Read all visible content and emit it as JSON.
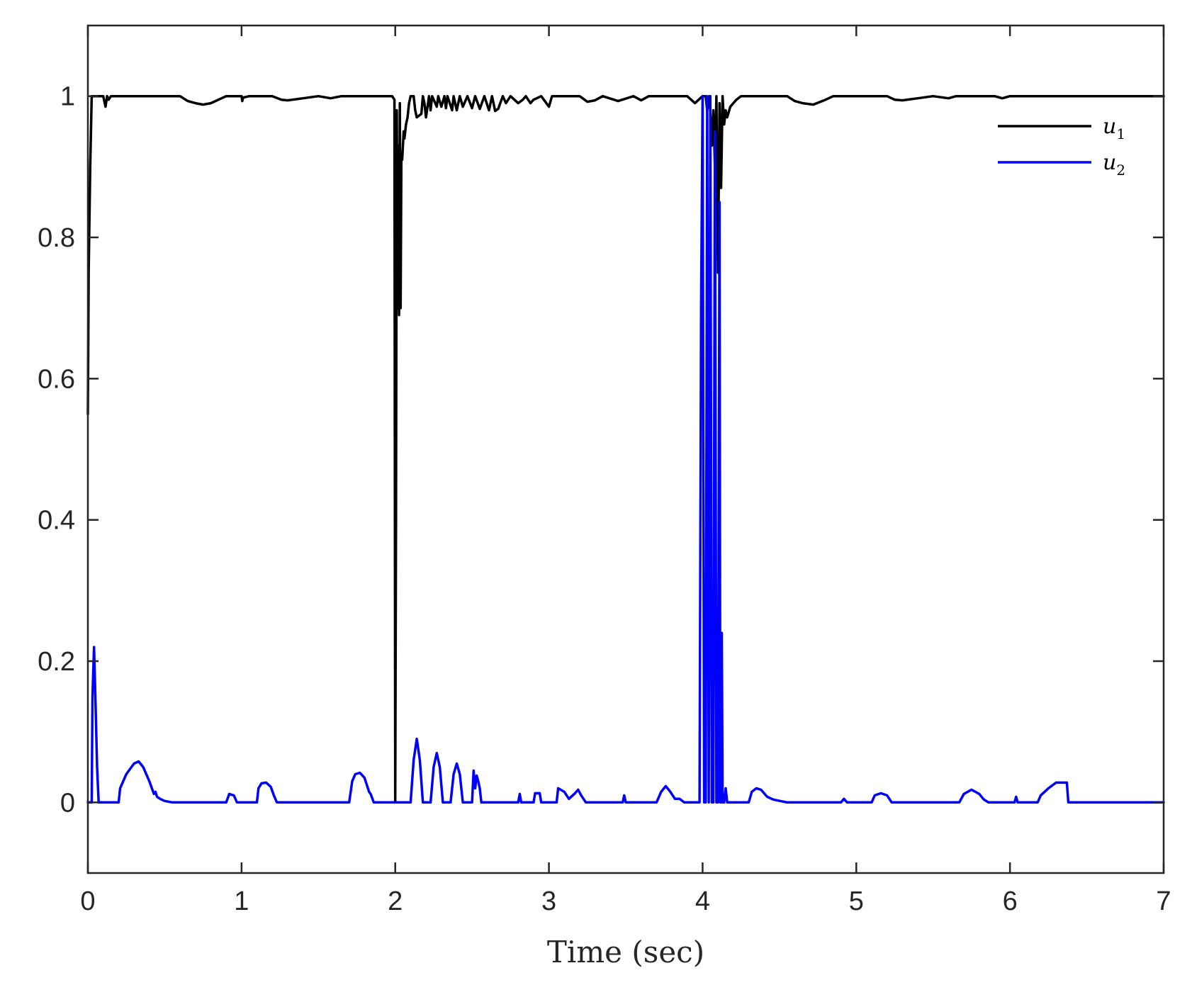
{
  "chart_data": {
    "type": "line",
    "title": "",
    "xlabel": "Time (sec)",
    "ylabel": "",
    "xlim": [
      0,
      7
    ],
    "ylim": [
      -0.1,
      1.1
    ],
    "xticks": [
      "0",
      "1",
      "2",
      "3",
      "4",
      "5",
      "6",
      "7"
    ],
    "yticks": [
      "0",
      "0.2",
      "0.4",
      "0.6",
      "0.8",
      "1"
    ],
    "grid": false,
    "legend_position": "top-right",
    "series": [
      {
        "name": "u1",
        "legend_base": "u",
        "legend_sub": "1",
        "color": "#000000",
        "x": [
          0,
          0.005,
          0.015,
          0.025,
          0.04,
          0.06,
          0.1,
          0.115,
          0.125,
          0.135,
          0.15,
          0.2,
          0.3,
          0.45,
          0.6,
          0.65,
          0.7,
          0.75,
          0.8,
          0.85,
          0.9,
          0.95,
          1.0,
          1.005,
          1.01,
          1.05,
          1.2,
          1.26,
          1.3,
          1.4,
          1.5,
          1.58,
          1.65,
          1.7,
          1.8,
          1.9,
          1.98,
          1.995,
          2.0,
          2.005,
          2.01,
          2.015,
          2.02,
          2.025,
          2.03,
          2.035,
          2.04,
          2.045,
          2.055,
          2.06,
          2.07,
          2.08,
          2.09,
          2.1,
          2.12,
          2.13,
          2.14,
          2.17,
          2.18,
          2.19,
          2.2,
          2.22,
          2.23,
          2.24,
          2.27,
          2.28,
          2.3,
          2.32,
          2.33,
          2.34,
          2.37,
          2.38,
          2.4,
          2.42,
          2.44,
          2.47,
          2.5,
          2.52,
          2.55,
          2.58,
          2.61,
          2.63,
          2.65,
          2.67,
          2.7,
          2.72,
          2.75,
          2.8,
          2.83,
          2.85,
          2.88,
          2.9,
          2.95,
          3.0,
          3.02,
          3.05,
          3.2,
          3.25,
          3.3,
          3.35,
          3.45,
          3.55,
          3.6,
          3.65,
          3.9,
          3.95,
          4.0,
          4.02,
          4.03,
          4.045,
          4.06,
          4.07,
          4.08,
          4.09,
          4.1,
          4.11,
          4.12,
          4.13,
          4.14,
          4.15,
          4.16,
          4.18,
          4.2,
          4.22,
          4.25,
          4.3,
          4.55,
          4.6,
          4.65,
          4.72,
          4.8,
          4.85,
          4.95,
          5.0,
          5.1,
          5.2,
          5.25,
          5.3,
          5.4,
          5.5,
          5.6,
          5.65,
          5.9,
          5.95,
          6.0,
          6.5,
          7.0
        ],
        "y": [
          0.55,
          0.75,
          0.9,
          1.0,
          1.0,
          1.0,
          1.0,
          0.985,
          1.0,
          0.995,
          1.0,
          1.0,
          1.0,
          1.0,
          1.0,
          0.993,
          0.99,
          0.988,
          0.99,
          0.995,
          1.0,
          1.0,
          1.0,
          0.993,
          0.998,
          1.0,
          1.0,
          0.995,
          0.994,
          0.997,
          1.0,
          0.997,
          1.0,
          1.0,
          1.0,
          1.0,
          1.0,
          0.995,
          0.0,
          0.4,
          0.98,
          0.7,
          0.93,
          0.69,
          0.99,
          0.7,
          0.92,
          0.91,
          0.95,
          0.94,
          0.96,
          0.97,
          0.99,
          1.0,
          1.0,
          0.98,
          0.97,
          0.975,
          1.0,
          0.99,
          0.97,
          1.0,
          0.98,
          1.0,
          0.985,
          1.0,
          0.985,
          1.0,
          0.983,
          1.0,
          0.98,
          1.0,
          0.98,
          1.0,
          0.985,
          1.0,
          0.983,
          1.0,
          0.982,
          1.0,
          0.98,
          1.0,
          0.979,
          0.982,
          1.0,
          0.99,
          1.0,
          0.99,
          0.995,
          1.0,
          0.99,
          0.995,
          1.0,
          0.985,
          1.0,
          1.0,
          1.0,
          0.992,
          0.994,
          1.0,
          0.993,
          1.0,
          0.994,
          1.0,
          1.0,
          0.99,
          1.0,
          1.0,
          0.98,
          1.0,
          0.93,
          0.98,
          0.9,
          1.0,
          0.75,
          0.99,
          0.87,
          1.0,
          0.96,
          0.98,
          0.97,
          0.985,
          0.99,
          0.995,
          1.0,
          1.0,
          1.0,
          0.993,
          0.99,
          0.988,
          0.995,
          1.0,
          1.0,
          1.0,
          1.0,
          1.0,
          0.995,
          0.994,
          0.997,
          1.0,
          0.997,
          1.0,
          1.0,
          0.997,
          1.0,
          1.0,
          1.0
        ]
      },
      {
        "name": "u2",
        "legend_base": "u",
        "legend_sub": "2",
        "color": "#0000ff",
        "x": [
          0,
          0.025,
          0.03,
          0.04,
          0.05,
          0.06,
          0.07,
          0.08,
          0.1,
          0.2,
          0.21,
          0.25,
          0.3,
          0.33,
          0.36,
          0.4,
          0.43,
          0.44,
          0.45,
          0.47,
          0.5,
          0.55,
          0.6,
          0.9,
          0.92,
          0.95,
          0.97,
          1.1,
          1.11,
          1.13,
          1.16,
          1.19,
          1.21,
          1.23,
          1.7,
          1.72,
          1.74,
          1.77,
          1.8,
          1.83,
          1.84,
          1.86,
          2.1,
          2.12,
          2.14,
          2.16,
          2.18,
          2.23,
          2.25,
          2.27,
          2.29,
          2.31,
          2.36,
          2.38,
          2.4,
          2.42,
          2.44,
          2.5,
          2.51,
          2.52,
          2.53,
          2.54,
          2.55,
          2.56,
          2.8,
          2.81,
          2.82,
          2.9,
          2.91,
          2.94,
          2.95,
          3.05,
          3.06,
          3.1,
          3.13,
          3.17,
          3.19,
          3.21,
          3.24,
          3.48,
          3.49,
          3.5,
          3.7,
          3.73,
          3.76,
          3.79,
          3.82,
          3.85,
          3.88,
          3.98,
          3.99,
          4.0,
          4.01,
          4.02,
          4.03,
          4.04,
          4.05,
          4.06,
          4.07,
          4.08,
          4.09,
          4.1,
          4.11,
          4.115,
          4.12,
          4.125,
          4.13,
          4.14,
          4.15,
          4.16,
          4.3,
          4.32,
          4.35,
          4.38,
          4.42,
          4.46,
          4.55,
          4.9,
          4.92,
          4.94,
          5.1,
          5.12,
          5.16,
          5.2,
          5.23,
          5.67,
          5.7,
          5.75,
          5.8,
          5.83,
          5.86,
          6.03,
          6.04,
          6.05,
          6.18,
          6.2,
          6.25,
          6.3,
          6.35,
          6.37,
          6.38,
          7.0
        ],
        "y": [
          0.0,
          0.0,
          0.15,
          0.22,
          0.14,
          0.05,
          0.0,
          0.0,
          0.0,
          0.0,
          0.02,
          0.04,
          0.055,
          0.058,
          0.05,
          0.03,
          0.012,
          0.015,
          0.008,
          0.005,
          0.002,
          0.0,
          0.0,
          0.0,
          0.012,
          0.01,
          0.0,
          0.0,
          0.02,
          0.027,
          0.028,
          0.022,
          0.01,
          0.0,
          0.0,
          0.03,
          0.04,
          0.042,
          0.035,
          0.015,
          0.012,
          0.0,
          0.0,
          0.06,
          0.09,
          0.06,
          0.0,
          0.0,
          0.05,
          0.07,
          0.05,
          0.0,
          0.0,
          0.04,
          0.055,
          0.04,
          0.0,
          0.0,
          0.045,
          0.02,
          0.038,
          0.03,
          0.02,
          0.0,
          0.0,
          0.012,
          0.0,
          0.0,
          0.013,
          0.013,
          0.0,
          0.0,
          0.02,
          0.015,
          0.005,
          0.013,
          0.018,
          0.01,
          0.0,
          0.0,
          0.01,
          0.0,
          0.0,
          0.015,
          0.023,
          0.015,
          0.005,
          0.005,
          0.0,
          0.0,
          0.7,
          1.0,
          0.0,
          0.0,
          1.0,
          0.0,
          1.0,
          0.0,
          0.0,
          0.95,
          0.0,
          0.0,
          0.85,
          0.0,
          0.0,
          0.24,
          0.0,
          0.0,
          0.02,
          0.0,
          0.0,
          0.015,
          0.02,
          0.018,
          0.008,
          0.004,
          0.0,
          0.0,
          0.005,
          0.0,
          0.0,
          0.01,
          0.013,
          0.01,
          0.0,
          0.0,
          0.012,
          0.018,
          0.012,
          0.004,
          0.0,
          0.0,
          0.008,
          0.0,
          0.0,
          0.01,
          0.02,
          0.028,
          0.028,
          0.028,
          0.0,
          0.0
        ]
      }
    ]
  }
}
